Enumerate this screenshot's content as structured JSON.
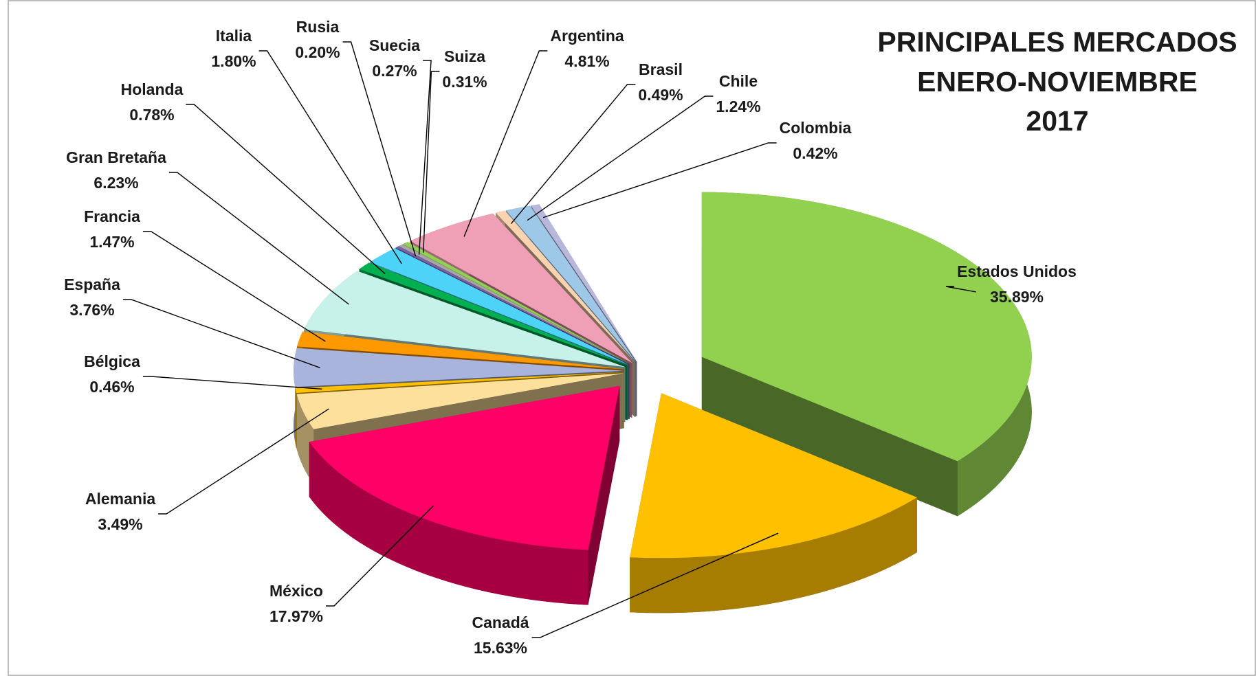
{
  "chart_data": {
    "type": "pie3d",
    "title": [
      "PRINCIPALES MERCADOS",
      "ENERO-NOVIEMBRE",
      "2017"
    ],
    "categories": [
      "Estados Unidos",
      "Canadá",
      "México",
      "Alemania",
      "Bélgica",
      "España",
      "Francia",
      "Gran Bretaña",
      "Holanda",
      "Italia",
      "Rusia",
      "Suecia",
      "Suiza",
      "Argentina",
      "Brasil",
      "Chile",
      "Colombia"
    ],
    "values": [
      35.89,
      15.63,
      17.97,
      3.49,
      0.46,
      3.76,
      1.47,
      6.23,
      0.78,
      1.8,
      0.2,
      0.27,
      0.31,
      4.81,
      0.49,
      1.24,
      0.42
    ],
    "value_labels": [
      "35.89%",
      "15.63%",
      "17.97%",
      "3.49%",
      "0.46%",
      "3.76%",
      "1.47%",
      "6.23%",
      "0.78%",
      "1.80%",
      "0.20%",
      "0.27%",
      "0.31%",
      "4.81%",
      "0.49%",
      "1.24%",
      "0.42%"
    ],
    "colors": [
      "#92d050",
      "#ffc000",
      "#ff0066",
      "#fde09c",
      "#ffc000",
      "#a9b4dc",
      "#ff9900",
      "#c6f2ea",
      "#00b050",
      "#4dd2f8",
      "#7a5fa8",
      "#a6a6a6",
      "#92d050",
      "#f0a0b6",
      "#fbd3b0",
      "#9dc8e8",
      "#b8b8dc"
    ]
  }
}
